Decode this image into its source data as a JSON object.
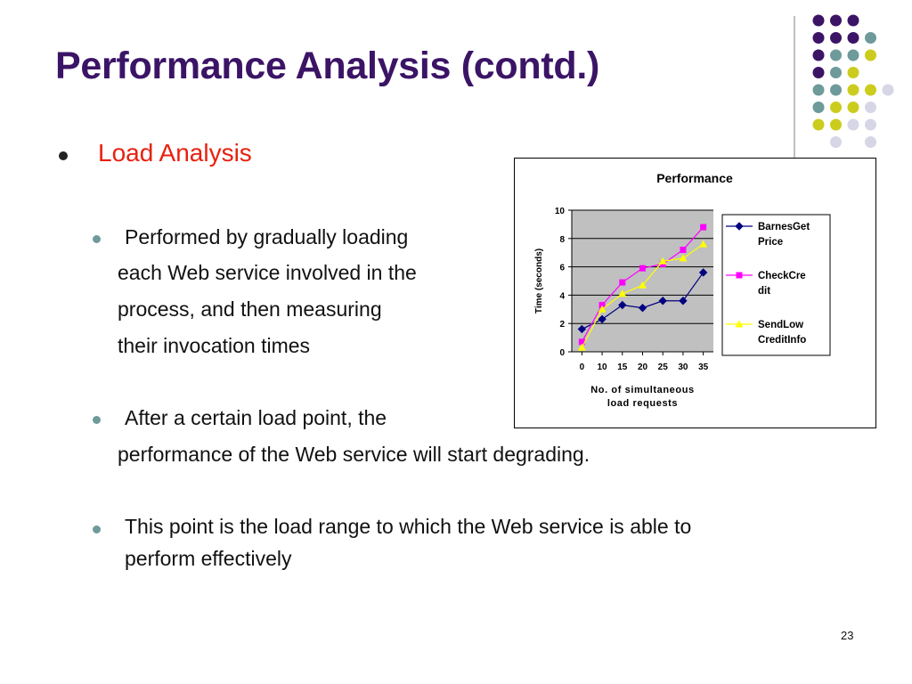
{
  "slide": {
    "title": "Performance Analysis (contd.)",
    "heading": "Load Analysis",
    "bullet1_lines": [
      "Performed by gradually loading",
      "each Web service involved in the",
      "process, and then measuring",
      "their invocation times"
    ],
    "bullet2_lines": [
      "After a certain load point, the",
      "performance of the Web service will start degrading."
    ],
    "bullet3_lines": [
      "This point is the load range to which the Web service is able to",
      "perform effectively"
    ],
    "page_number": "23"
  },
  "decor": {
    "dot_colors": {
      "purple": "#3b1466",
      "teal": "#6e9a9a",
      "yellow": "#cccc1e",
      "lavender": "#d6d6e6"
    },
    "dot_rows": [
      [
        "purple",
        "purple",
        "purple",
        null
      ],
      [
        "purple",
        "purple",
        "purple",
        "teal"
      ],
      [
        "purple",
        "teal",
        "teal",
        "yellow"
      ],
      [
        "purple",
        "teal",
        "yellow",
        null
      ],
      [
        "teal",
        "teal",
        "yellow",
        "yellow",
        "lavender"
      ],
      [
        "teal",
        "yellow",
        "yellow",
        "lavender"
      ],
      [
        "yellow",
        "yellow",
        "lavender",
        "lavender"
      ],
      [
        null,
        "lavender",
        null,
        "lavender"
      ]
    ]
  },
  "chart_data": {
    "type": "line",
    "title": "Performance",
    "xlabel": "No. of simultaneous load requests",
    "xlabel_lines": [
      "No. of simultaneous",
      "load requests"
    ],
    "ylabel": "Time (seconds)",
    "categories": [
      "0",
      "10",
      "15",
      "20",
      "25",
      "30",
      "35"
    ],
    "ylim": [
      0,
      10
    ],
    "yticks": [
      "0",
      "2",
      "4",
      "6",
      "8",
      "10"
    ],
    "grid": true,
    "legend_position": "right",
    "series": [
      {
        "name": "BarnesGetPrice",
        "legend_lines": [
          "BarnesGet",
          "Price"
        ],
        "color": "#000080",
        "marker": "diamond",
        "values": [
          1.6,
          2.3,
          3.3,
          3.1,
          3.6,
          3.6,
          5.6
        ]
      },
      {
        "name": "CheckCredit",
        "legend_lines": [
          "CheckCre",
          "dit"
        ],
        "color": "#ff00ff",
        "marker": "square",
        "values": [
          0.7,
          3.3,
          4.9,
          5.9,
          6.2,
          7.2,
          8.8
        ]
      },
      {
        "name": "SendLowCreditInfo",
        "legend_lines": [
          "SendLow",
          "CreditInfo"
        ],
        "color": "#ffff00",
        "marker": "triangle",
        "values": [
          0.3,
          3.0,
          4.1,
          4.7,
          6.4,
          6.6,
          7.6
        ]
      }
    ]
  }
}
